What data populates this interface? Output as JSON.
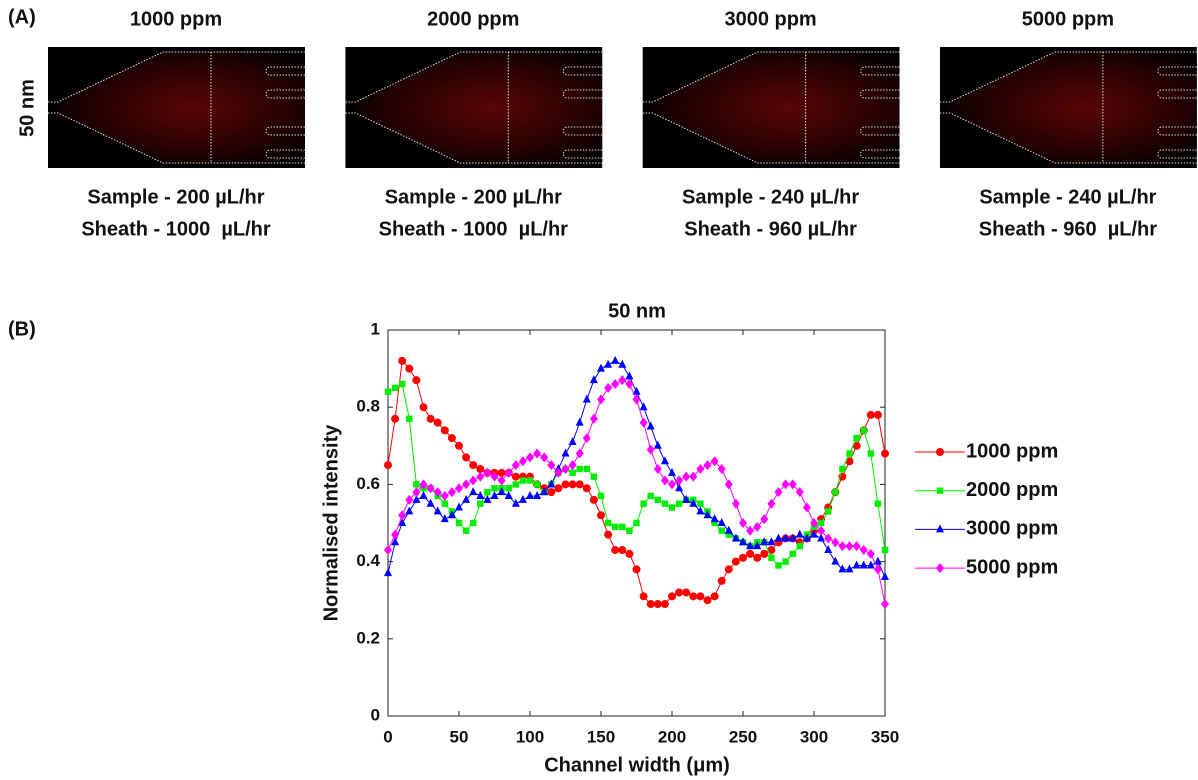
{
  "panel_a": {
    "label": "(A)",
    "row_label": "50 nm",
    "panels": [
      {
        "title": "1000 ppm",
        "sample": "Sample - 200 µL/hr",
        "sheath": "Sheath - 1000  µL/hr"
      },
      {
        "title": "2000 ppm",
        "sample": "Sample - 200 µL/hr",
        "sheath": "Sheath - 1000  µL/hr"
      },
      {
        "title": "3000 ppm",
        "sample": "Sample - 240 µL/hr",
        "sheath": "Sheath - 960 µL/hr"
      },
      {
        "title": "5000 ppm",
        "sample": "Sample - 240 µL/hr",
        "sheath": "Sheath - 960  µL/hr"
      }
    ]
  },
  "chart_data": {
    "type": "line",
    "panel_label": "(B)",
    "title": "50 nm",
    "x_label": "Channel width (μm)",
    "y_label": "Normalised intensity",
    "xlim": [
      0,
      350
    ],
    "xticks": [
      0,
      50,
      100,
      150,
      200,
      250,
      300,
      350
    ],
    "ylim": [
      0,
      1
    ],
    "yticks": [
      0,
      0.2,
      0.4,
      0.6,
      0.8,
      1
    ],
    "grid": false,
    "legend_position": "right",
    "x": [
      0,
      5,
      10,
      15,
      20,
      25,
      30,
      35,
      40,
      45,
      50,
      55,
      60,
      65,
      70,
      75,
      80,
      85,
      90,
      95,
      100,
      105,
      110,
      115,
      120,
      125,
      130,
      135,
      140,
      145,
      150,
      155,
      160,
      165,
      170,
      175,
      180,
      185,
      190,
      195,
      200,
      205,
      210,
      215,
      220,
      225,
      230,
      235,
      240,
      245,
      250,
      255,
      260,
      265,
      270,
      275,
      280,
      285,
      290,
      295,
      300,
      305,
      310,
      315,
      320,
      325,
      330,
      335,
      340,
      345,
      350
    ],
    "series": [
      {
        "name": "1000 ppm",
        "color": "#ff0000",
        "marker": "circle",
        "values": [
          0.65,
          0.77,
          0.92,
          0.9,
          0.87,
          0.8,
          0.77,
          0.76,
          0.74,
          0.72,
          0.7,
          0.67,
          0.65,
          0.64,
          0.63,
          0.63,
          0.63,
          0.63,
          0.62,
          0.62,
          0.62,
          0.6,
          0.59,
          0.58,
          0.59,
          0.6,
          0.6,
          0.6,
          0.59,
          0.56,
          0.52,
          0.47,
          0.43,
          0.43,
          0.42,
          0.38,
          0.31,
          0.29,
          0.29,
          0.29,
          0.31,
          0.32,
          0.32,
          0.31,
          0.31,
          0.3,
          0.31,
          0.35,
          0.38,
          0.4,
          0.41,
          0.42,
          0.41,
          0.42,
          0.43,
          0.45,
          0.46,
          0.46,
          0.45,
          0.46,
          0.48,
          0.51,
          0.54,
          0.58,
          0.62,
          0.66,
          0.7,
          0.74,
          0.78,
          0.78,
          0.68
        ]
      },
      {
        "name": "2000 ppm",
        "color": "#00ee00",
        "marker": "square",
        "values": [
          0.84,
          0.85,
          0.86,
          0.77,
          0.6,
          0.59,
          0.59,
          0.57,
          0.55,
          0.53,
          0.5,
          0.48,
          0.5,
          0.55,
          0.58,
          0.59,
          0.59,
          0.59,
          0.6,
          0.61,
          0.61,
          0.6,
          0.58,
          0.6,
          0.63,
          0.64,
          0.63,
          0.64,
          0.64,
          0.62,
          0.57,
          0.5,
          0.49,
          0.49,
          0.48,
          0.5,
          0.55,
          0.57,
          0.56,
          0.55,
          0.54,
          0.55,
          0.56,
          0.56,
          0.55,
          0.53,
          0.5,
          0.48,
          0.47,
          0.46,
          0.45,
          0.44,
          0.45,
          0.45,
          0.41,
          0.39,
          0.4,
          0.42,
          0.44,
          0.47,
          0.49,
          0.5,
          0.53,
          0.58,
          0.64,
          0.68,
          0.72,
          0.74,
          0.68,
          0.55,
          0.43
        ]
      },
      {
        "name": "3000 ppm",
        "color": "#0000ff",
        "marker": "triangle",
        "values": [
          0.37,
          0.45,
          0.5,
          0.53,
          0.56,
          0.57,
          0.55,
          0.53,
          0.51,
          0.52,
          0.54,
          0.56,
          0.58,
          0.57,
          0.56,
          0.57,
          0.58,
          0.57,
          0.55,
          0.56,
          0.57,
          0.57,
          0.58,
          0.6,
          0.64,
          0.68,
          0.71,
          0.76,
          0.82,
          0.87,
          0.9,
          0.91,
          0.92,
          0.91,
          0.88,
          0.84,
          0.8,
          0.75,
          0.7,
          0.66,
          0.63,
          0.59,
          0.56,
          0.55,
          0.53,
          0.52,
          0.51,
          0.5,
          0.48,
          0.46,
          0.45,
          0.44,
          0.44,
          0.45,
          0.45,
          0.46,
          0.46,
          0.46,
          0.47,
          0.46,
          0.47,
          0.46,
          0.43,
          0.4,
          0.38,
          0.38,
          0.39,
          0.39,
          0.39,
          0.4,
          0.36
        ]
      },
      {
        "name": "5000 ppm",
        "color": "#ff00ff",
        "marker": "diamond",
        "values": [
          0.43,
          0.47,
          0.52,
          0.56,
          0.58,
          0.6,
          0.59,
          0.58,
          0.57,
          0.58,
          0.59,
          0.6,
          0.61,
          0.62,
          0.63,
          0.62,
          0.61,
          0.63,
          0.65,
          0.66,
          0.67,
          0.68,
          0.67,
          0.65,
          0.63,
          0.64,
          0.65,
          0.68,
          0.72,
          0.77,
          0.82,
          0.85,
          0.86,
          0.87,
          0.86,
          0.82,
          0.76,
          0.69,
          0.64,
          0.61,
          0.6,
          0.61,
          0.62,
          0.62,
          0.64,
          0.65,
          0.66,
          0.64,
          0.6,
          0.55,
          0.5,
          0.48,
          0.49,
          0.51,
          0.55,
          0.58,
          0.6,
          0.6,
          0.58,
          0.54,
          0.5,
          0.48,
          0.46,
          0.45,
          0.44,
          0.44,
          0.44,
          0.43,
          0.42,
          0.38,
          0.29
        ]
      }
    ]
  }
}
